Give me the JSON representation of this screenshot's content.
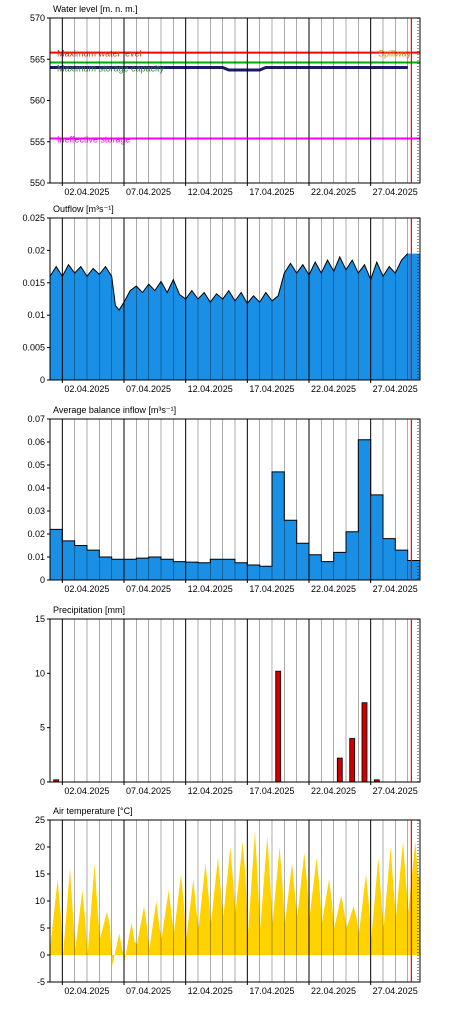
{
  "colors": {
    "blue_fill": "#1a8fe6",
    "yellow_fill": "#ffd200",
    "precip_bar": "#cc0000",
    "max_level_line": "#ff0000",
    "max_storage_line": "#00aa00",
    "ineffective_line": "#ff00ff",
    "water_level_line": "#1a1a66",
    "current_line": "#ff0000",
    "grid": "#000000"
  },
  "chart_data": [
    {
      "id": "water-level",
      "type": "line",
      "title": "Water level [m. n. m.]",
      "ylim": [
        550,
        570
      ],
      "yticks": [
        "550",
        "555",
        "560",
        "565",
        "570"
      ],
      "xticks": [
        "02.04.2025",
        "07.04.2025",
        "12.04.2025",
        "17.04.2025",
        "22.04.2025",
        "27.04.2025"
      ],
      "reference_lines": [
        {
          "label": "Maximum water level",
          "value": 565.8,
          "color": "#ff0000"
        },
        {
          "label": "Maximum storage capacity",
          "value": 564.6,
          "color": "#00aa00"
        },
        {
          "label": "Ineffective storage",
          "value": 555.4,
          "color": "#ff00ff"
        }
      ],
      "right_label": "Spillway",
      "series": [
        {
          "x": [
            1,
            15,
            15.5,
            18,
            18.5,
            30
          ],
          "y": [
            564.0,
            564.0,
            563.7,
            563.7,
            564.0,
            564.0
          ]
        }
      ]
    },
    {
      "id": "outflow",
      "type": "area",
      "title": "Outflow [m³s⁻¹]",
      "ylim": [
        0,
        0.025
      ],
      "yticks": [
        "0",
        "0.005",
        "0.01",
        "0.015",
        "0.02",
        "0.025"
      ],
      "xticks": [
        "02.04.2025",
        "07.04.2025",
        "12.04.2025",
        "17.04.2025",
        "22.04.2025",
        "27.04.2025"
      ],
      "series": [
        {
          "x": [
            1,
            1.5,
            2,
            2.5,
            3,
            3.5,
            4,
            4.5,
            5,
            5.5,
            6,
            6.3,
            6.6,
            7,
            7.5,
            8,
            8.5,
            9,
            9.5,
            10,
            10.5,
            11,
            11.5,
            12,
            12.5,
            13,
            13.5,
            14,
            14.5,
            15,
            15.5,
            16,
            16.5,
            17,
            17.5,
            18,
            18.5,
            19,
            19.5,
            20,
            20.5,
            21,
            21.5,
            22,
            22.5,
            23,
            23.5,
            24,
            24.5,
            25,
            25.5,
            26,
            26.5,
            27,
            27.5,
            28,
            28.5,
            29,
            29.5,
            30
          ],
          "y": [
            0.016,
            0.0175,
            0.016,
            0.0178,
            0.0165,
            0.0175,
            0.016,
            0.0172,
            0.0163,
            0.0175,
            0.016,
            0.0115,
            0.0108,
            0.012,
            0.0138,
            0.0145,
            0.0135,
            0.0148,
            0.0138,
            0.0152,
            0.0135,
            0.0155,
            0.0132,
            0.0125,
            0.0138,
            0.0125,
            0.0135,
            0.012,
            0.0133,
            0.0125,
            0.0138,
            0.0122,
            0.0135,
            0.0118,
            0.013,
            0.012,
            0.0135,
            0.0122,
            0.013,
            0.0165,
            0.018,
            0.0165,
            0.0178,
            0.0162,
            0.0182,
            0.0165,
            0.0185,
            0.0168,
            0.019,
            0.017,
            0.0185,
            0.0165,
            0.0178,
            0.0155,
            0.0182,
            0.016,
            0.0175,
            0.0165,
            0.0185,
            0.0195
          ]
        }
      ]
    },
    {
      "id": "inflow",
      "type": "bar",
      "title": "Average balance inflow  [m³s⁻¹]",
      "ylim": [
        0,
        0.07
      ],
      "yticks": [
        "0",
        "0.01",
        "0.02",
        "0.03",
        "0.04",
        "0.05",
        "0.06",
        "0.07"
      ],
      "xticks": [
        "02.04.2025",
        "07.04.2025",
        "12.04.2025",
        "17.04.2025",
        "22.04.2025",
        "27.04.2025"
      ],
      "series": [
        {
          "x": [
            1,
            2,
            3,
            4,
            5,
            6,
            7,
            8,
            9,
            10,
            11,
            12,
            13,
            14,
            15,
            16,
            17,
            18,
            19,
            20,
            21,
            22,
            23,
            24,
            25,
            26,
            27,
            28,
            29,
            30
          ],
          "y": [
            0.022,
            0.017,
            0.015,
            0.013,
            0.01,
            0.009,
            0.009,
            0.0095,
            0.01,
            0.009,
            0.008,
            0.0078,
            0.0075,
            0.009,
            0.009,
            0.0075,
            0.0065,
            0.006,
            0.047,
            0.026,
            0.016,
            0.011,
            0.008,
            0.012,
            0.021,
            0.061,
            0.037,
            0.018,
            0.013,
            0.0085
          ]
        }
      ]
    },
    {
      "id": "precipitation",
      "type": "bar",
      "title": "Precipitation [mm]",
      "ylim": [
        0,
        15
      ],
      "yticks": [
        "0",
        "5",
        "10",
        "15"
      ],
      "xticks": [
        "02.04.2025",
        "07.04.2025",
        "12.04.2025",
        "17.04.2025",
        "22.04.2025",
        "27.04.2025"
      ],
      "series": [
        {
          "x": [
            1,
            19,
            24,
            25,
            26,
            27
          ],
          "y": [
            0.2,
            10.2,
            2.2,
            4,
            7.3,
            0.2
          ]
        }
      ]
    },
    {
      "id": "air-temperature",
      "type": "area",
      "title": "Air temperature [°C]",
      "ylim": [
        -5,
        25
      ],
      "yticks": [
        "-5",
        "0",
        "5",
        "10",
        "15",
        "20",
        "25"
      ],
      "xticks": [
        "02.04.2025",
        "07.04.2025",
        "12.04.2025",
        "17.04.2025",
        "22.04.2025",
        "27.04.2025"
      ],
      "daily_min": [
        2,
        0,
        1,
        0,
        3,
        -2,
        -1,
        2,
        1,
        3,
        4,
        3,
        5,
        6,
        7,
        8,
        4,
        5,
        6,
        6,
        7,
        7,
        6,
        5,
        5,
        4,
        3,
        5,
        7,
        8
      ],
      "daily_max": [
        14,
        16,
        12,
        17,
        8,
        4,
        6,
        9,
        10,
        12,
        15,
        14,
        17,
        18,
        20,
        21,
        23,
        22,
        20,
        17,
        19,
        18,
        14,
        11,
        9,
        15,
        18,
        20,
        21,
        21
      ]
    }
  ]
}
